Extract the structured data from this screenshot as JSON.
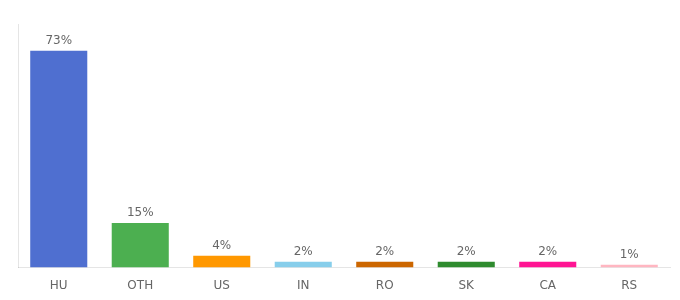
{
  "chart_data": {
    "type": "bar",
    "categories": [
      "HU",
      "OTH",
      "US",
      "IN",
      "RO",
      "SK",
      "CA",
      "RS"
    ],
    "values": [
      73,
      15,
      4,
      2,
      2,
      2,
      2,
      1
    ],
    "value_labels": [
      "73%",
      "15%",
      "4%",
      "2%",
      "2%",
      "2%",
      "2%",
      "1%"
    ],
    "colors": [
      "#4F6FD0",
      "#4CAF50",
      "#FF9800",
      "#87CEEB",
      "#CC6600",
      "#2E8B2E",
      "#FF1493",
      "#FFB6C1"
    ],
    "ylim": [
      0,
      82
    ],
    "grid": false,
    "data_labels": true,
    "tick_labels": "x"
  }
}
